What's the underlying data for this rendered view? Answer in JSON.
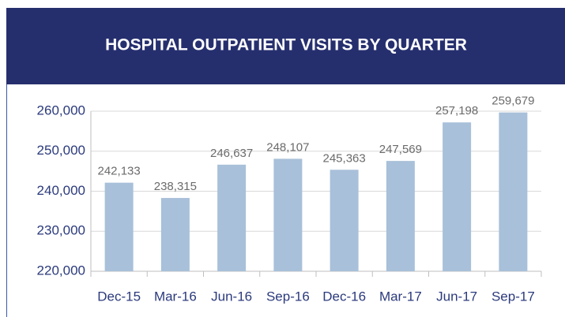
{
  "chart_data": {
    "type": "bar",
    "title": "HOSPITAL OUTPATIENT VISITS BY QUARTER",
    "categories": [
      "Dec-15",
      "Mar-16",
      "Jun-16",
      "Sep-16",
      "Dec-16",
      "Mar-17",
      "Jun-17",
      "Sep-17"
    ],
    "values": [
      242133,
      238315,
      246637,
      248107,
      245363,
      247569,
      257198,
      259679
    ],
    "value_labels": [
      "242,133",
      "238,315",
      "246,637",
      "248,107",
      "245,363",
      "247,569",
      "257,198",
      "259,679"
    ],
    "color": "#a8c0d9",
    "ylim": [
      220000,
      260000
    ],
    "yticks": [
      {
        "value": 220000,
        "label": "220,000"
      },
      {
        "value": 230000,
        "label": "230,000"
      },
      {
        "value": 240000,
        "label": "240,000"
      },
      {
        "value": 250000,
        "label": "250,000"
      },
      {
        "value": 260000,
        "label": "260,000"
      }
    ],
    "grid": true
  }
}
